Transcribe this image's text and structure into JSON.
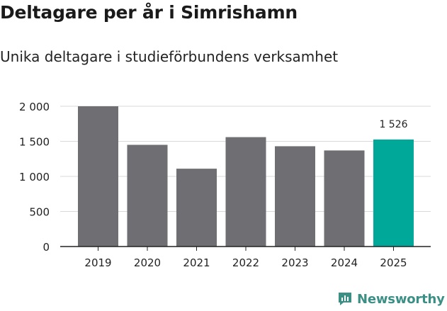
{
  "colors": {
    "bar": "#6e6e73",
    "highlight": "#00a89a",
    "grid": "#d9d9d9",
    "axis": "#222222"
  },
  "brand": {
    "name": "Newsworthy",
    "icon": "newsworthy-logo-icon"
  },
  "chart_data": {
    "type": "bar",
    "title": "Deltagare per år i Simrishamn",
    "subtitle": "Unika deltagare i studieförbundens verksamhet",
    "categories": [
      "2019",
      "2020",
      "2021",
      "2022",
      "2023",
      "2024",
      "2025"
    ],
    "values": [
      2000,
      1450,
      1110,
      1560,
      1430,
      1370,
      1526
    ],
    "highlight_index": 6,
    "data_labels": [
      {
        "index": 6,
        "text": "1 526"
      }
    ],
    "ylim": [
      0,
      2000
    ],
    "yticks": [
      0,
      500,
      1000,
      1500,
      2000
    ],
    "ytick_labels": [
      "0",
      "500",
      "1 000",
      "1 500",
      "2 000"
    ],
    "xlabel": "",
    "ylabel": "",
    "grid": true
  }
}
